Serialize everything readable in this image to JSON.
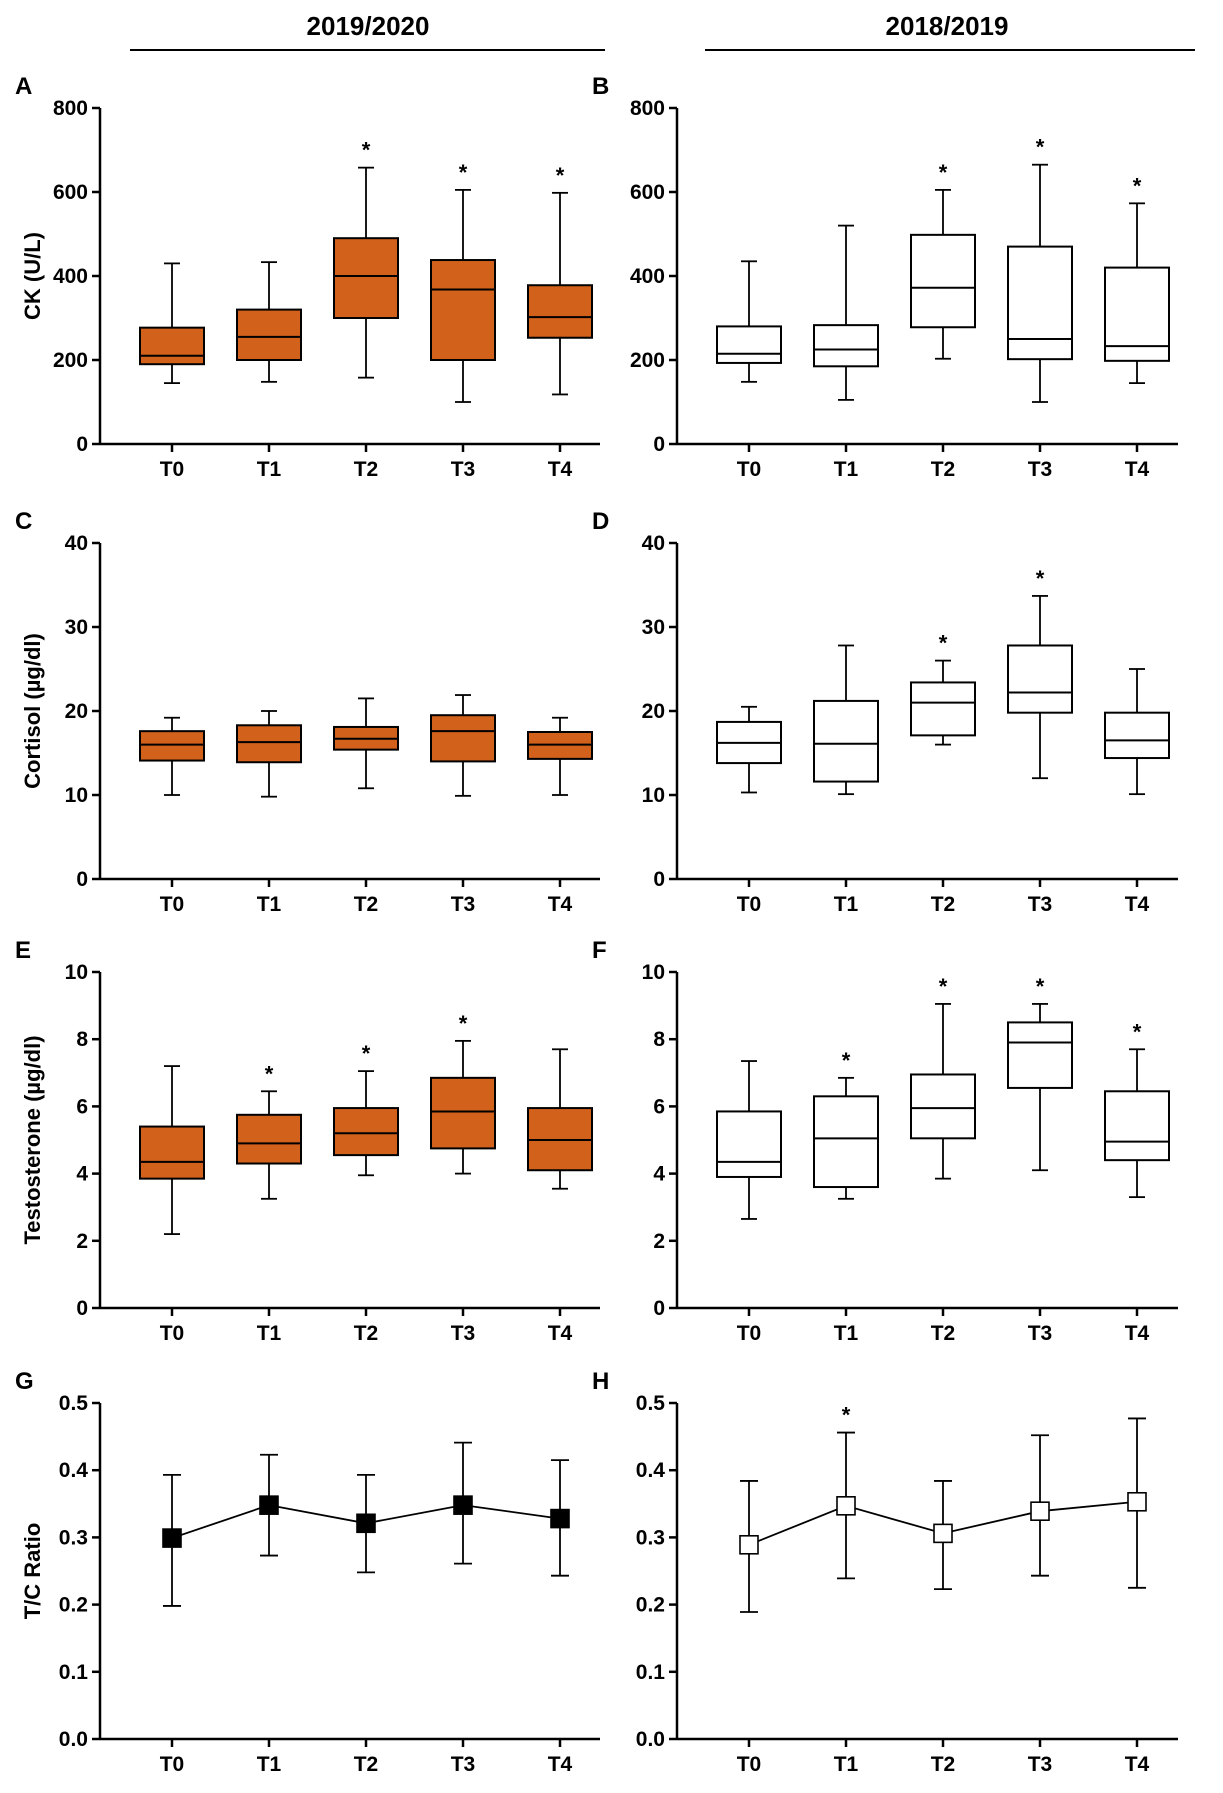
{
  "header": {
    "left_title": "2019/2020",
    "right_title": "2018/2019"
  },
  "colors": {
    "season_2019_2020": "#d2611c",
    "season_2018_2019": "#ffffff",
    "stroke": "#000000"
  },
  "chart_data": [
    {
      "panel": "A",
      "type": "box",
      "season": "2019/2020",
      "ylabel": "CK (U/L)",
      "categories": [
        "T0",
        "T1",
        "T2",
        "T3",
        "T4"
      ],
      "ylim": [
        0,
        800
      ],
      "yticks": [
        0,
        200,
        400,
        600,
        800
      ],
      "series": [
        {
          "min": 145,
          "q1": 190,
          "median": 210,
          "q3": 277,
          "max": 430
        },
        {
          "min": 148,
          "q1": 200,
          "median": 255,
          "q3": 320,
          "max": 433
        },
        {
          "min": 158,
          "q1": 300,
          "median": 400,
          "q3": 490,
          "max": 658
        },
        {
          "min": 100,
          "q1": 200,
          "median": 368,
          "q3": 438,
          "max": 605
        },
        {
          "min": 118,
          "q1": 253,
          "median": 302,
          "q3": 378,
          "max": 598
        }
      ],
      "significance": [
        "",
        "",
        "*",
        "*",
        "*"
      ]
    },
    {
      "panel": "B",
      "type": "box",
      "season": "2018/2019",
      "ylabel": "",
      "categories": [
        "T0",
        "T1",
        "T2",
        "T3",
        "T4"
      ],
      "ylim": [
        0,
        800
      ],
      "yticks": [
        0,
        200,
        400,
        600,
        800
      ],
      "series": [
        {
          "min": 148,
          "q1": 193,
          "median": 215,
          "q3": 280,
          "max": 435
        },
        {
          "min": 105,
          "q1": 185,
          "median": 225,
          "q3": 283,
          "max": 520
        },
        {
          "min": 203,
          "q1": 278,
          "median": 372,
          "q3": 498,
          "max": 605
        },
        {
          "min": 100,
          "q1": 202,
          "median": 250,
          "q3": 470,
          "max": 665
        },
        {
          "min": 145,
          "q1": 198,
          "median": 233,
          "q3": 420,
          "max": 573
        }
      ],
      "significance": [
        "",
        "",
        "*",
        "*",
        "*"
      ]
    },
    {
      "panel": "C",
      "type": "box",
      "season": "2019/2020",
      "ylabel": "Cortisol (µg/dl)",
      "categories": [
        "T0",
        "T1",
        "T2",
        "T3",
        "T4"
      ],
      "ylim": [
        0,
        40
      ],
      "yticks": [
        0,
        10,
        20,
        30,
        40
      ],
      "series": [
        {
          "min": 10,
          "q1": 14.1,
          "median": 16,
          "q3": 17.6,
          "max": 19.2
        },
        {
          "min": 9.8,
          "q1": 13.9,
          "median": 16.3,
          "q3": 18.3,
          "max": 20
        },
        {
          "min": 10.8,
          "q1": 15.4,
          "median": 16.7,
          "q3": 18.1,
          "max": 21.5
        },
        {
          "min": 9.9,
          "q1": 14,
          "median": 17.6,
          "q3": 19.5,
          "max": 21.9
        },
        {
          "min": 10,
          "q1": 14.3,
          "median": 16,
          "q3": 17.5,
          "max": 19.2
        }
      ],
      "significance": [
        "",
        "",
        "",
        "",
        ""
      ]
    },
    {
      "panel": "D",
      "type": "box",
      "season": "2018/2019",
      "ylabel": "",
      "categories": [
        "T0",
        "T1",
        "T2",
        "T3",
        "T4"
      ],
      "ylim": [
        0,
        40
      ],
      "yticks": [
        0,
        10,
        20,
        30,
        40
      ],
      "series": [
        {
          "min": 10.3,
          "q1": 13.8,
          "median": 16.2,
          "q3": 18.7,
          "max": 20.5
        },
        {
          "min": 10.1,
          "q1": 11.6,
          "median": 16.1,
          "q3": 21.2,
          "max": 27.8
        },
        {
          "min": 16,
          "q1": 17.1,
          "median": 21,
          "q3": 23.4,
          "max": 26
        },
        {
          "min": 12,
          "q1": 19.8,
          "median": 22.2,
          "q3": 27.8,
          "max": 33.7
        },
        {
          "min": 10.1,
          "q1": 14.4,
          "median": 16.5,
          "q3": 19.8,
          "max": 25
        }
      ],
      "significance": [
        "",
        "",
        "*",
        "*",
        ""
      ]
    },
    {
      "panel": "E",
      "type": "box",
      "season": "2019/2020",
      "ylabel": "Testosterone (µg/dl)",
      "categories": [
        "T0",
        "T1",
        "T2",
        "T3",
        "T4"
      ],
      "ylim": [
        0,
        10
      ],
      "yticks": [
        0,
        2,
        4,
        6,
        8,
        10
      ],
      "series": [
        {
          "min": 2.2,
          "q1": 3.85,
          "median": 4.35,
          "q3": 5.4,
          "max": 7.2
        },
        {
          "min": 3.25,
          "q1": 4.3,
          "median": 4.9,
          "q3": 5.75,
          "max": 6.45
        },
        {
          "min": 3.95,
          "q1": 4.55,
          "median": 5.2,
          "q3": 5.95,
          "max": 7.05
        },
        {
          "min": 4,
          "q1": 4.75,
          "median": 5.85,
          "q3": 6.85,
          "max": 7.95
        },
        {
          "min": 3.55,
          "q1": 4.1,
          "median": 5,
          "q3": 5.95,
          "max": 7.7
        }
      ],
      "significance": [
        "",
        "*",
        "*",
        "*",
        ""
      ]
    },
    {
      "panel": "F",
      "type": "box",
      "season": "2018/2019",
      "ylabel": "",
      "categories": [
        "T0",
        "T1",
        "T2",
        "T3",
        "T4"
      ],
      "ylim": [
        0,
        10
      ],
      "yticks": [
        0,
        2,
        4,
        6,
        8,
        10
      ],
      "series": [
        {
          "min": 2.65,
          "q1": 3.9,
          "median": 4.35,
          "q3": 5.85,
          "max": 7.35
        },
        {
          "min": 3.25,
          "q1": 3.6,
          "median": 5.05,
          "q3": 6.3,
          "max": 6.85
        },
        {
          "min": 3.85,
          "q1": 5.05,
          "median": 5.95,
          "q3": 6.95,
          "max": 9.05
        },
        {
          "min": 4.1,
          "q1": 6.55,
          "median": 7.9,
          "q3": 8.5,
          "max": 9.05
        },
        {
          "min": 3.3,
          "q1": 4.4,
          "median": 4.95,
          "q3": 6.45,
          "max": 7.7
        }
      ],
      "significance": [
        "",
        "*",
        "*",
        "*",
        "*"
      ]
    },
    {
      "panel": "G",
      "type": "line",
      "season": "2019/2020",
      "ylabel": "T/C Ratio",
      "categories": [
        "T0",
        "T1",
        "T2",
        "T3",
        "T4"
      ],
      "ylim": [
        0,
        0.5
      ],
      "yticks": [
        0,
        0.1,
        0.2,
        0.3,
        0.4,
        0.5
      ],
      "series": [
        {
          "mean": 0.299,
          "err_low": 0.198,
          "err_high": 0.393
        },
        {
          "mean": 0.348,
          "err_low": 0.273,
          "err_high": 0.423
        },
        {
          "mean": 0.321,
          "err_low": 0.248,
          "err_high": 0.393
        },
        {
          "mean": 0.348,
          "err_low": 0.261,
          "err_high": 0.441
        },
        {
          "mean": 0.328,
          "err_low": 0.243,
          "err_high": 0.415
        }
      ],
      "significance": [
        "",
        "",
        "",
        "",
        ""
      ]
    },
    {
      "panel": "H",
      "type": "line",
      "season": "2018/2019",
      "ylabel": "",
      "categories": [
        "T0",
        "T1",
        "T2",
        "T3",
        "T4"
      ],
      "ylim": [
        0,
        0.5
      ],
      "yticks": [
        0,
        0.1,
        0.2,
        0.3,
        0.4,
        0.5
      ],
      "series": [
        {
          "mean": 0.289,
          "err_low": 0.189,
          "err_high": 0.384
        },
        {
          "mean": 0.347,
          "err_low": 0.239,
          "err_high": 0.456
        },
        {
          "mean": 0.306,
          "err_low": 0.223,
          "err_high": 0.384
        },
        {
          "mean": 0.339,
          "err_low": 0.243,
          "err_high": 0.452
        },
        {
          "mean": 0.353,
          "err_low": 0.225,
          "err_high": 0.477
        }
      ],
      "significance": [
        "",
        "*",
        "",
        "",
        ""
      ]
    }
  ]
}
